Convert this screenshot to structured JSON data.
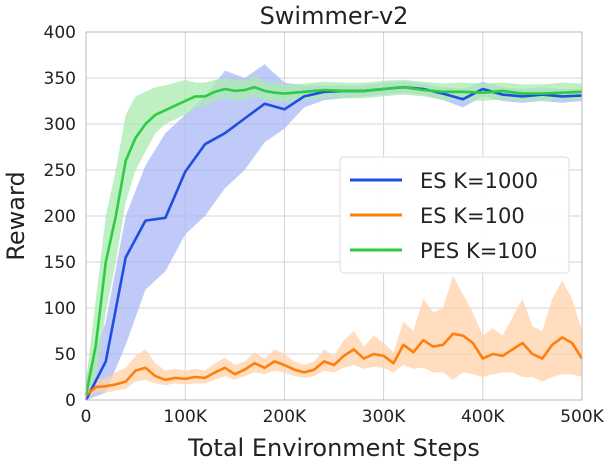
{
  "chart_data": {
    "type": "line",
    "title": "Swimmer-v2",
    "xlabel": "Total Environment Steps",
    "ylabel": "Reward",
    "xlim": [
      0,
      500000
    ],
    "ylim": [
      0,
      400
    ],
    "xticks": [
      0,
      100000,
      200000,
      300000,
      400000,
      500000
    ],
    "xtick_labels": [
      "0",
      "100K",
      "200K",
      "300K",
      "400K",
      "500K"
    ],
    "yticks": [
      0,
      50,
      100,
      150,
      200,
      250,
      300,
      350,
      400
    ],
    "ytick_labels": [
      "0",
      "50",
      "100",
      "150",
      "200",
      "250",
      "300",
      "350",
      "400"
    ],
    "grid": true,
    "legend_position": "center-right",
    "series": [
      {
        "name": "ES K=1000",
        "color": "#1f4fe0",
        "band_color": "#aab8f5",
        "x": [
          0,
          20000,
          40000,
          60000,
          80000,
          100000,
          120000,
          140000,
          160000,
          180000,
          200000,
          220000,
          240000,
          260000,
          280000,
          300000,
          320000,
          340000,
          360000,
          380000,
          400000,
          420000,
          440000,
          460000,
          480000,
          500000
        ],
        "y": [
          0,
          42,
          155,
          195,
          198,
          248,
          278,
          290,
          306,
          322,
          316,
          330,
          335,
          336,
          336,
          338,
          340,
          338,
          333,
          327,
          338,
          332,
          330,
          332,
          330,
          331
        ],
        "lower": [
          0,
          8,
          60,
          120,
          140,
          180,
          200,
          230,
          250,
          280,
          295,
          318,
          326,
          328,
          330,
          332,
          334,
          332,
          326,
          318,
          330,
          325,
          323,
          325,
          323,
          325
        ],
        "upper": [
          25,
          85,
          200,
          255,
          290,
          310,
          330,
          358,
          350,
          365,
          345,
          342,
          342,
          342,
          342,
          345,
          346,
          344,
          340,
          338,
          346,
          340,
          338,
          340,
          338,
          338
        ]
      },
      {
        "name": "ES K=100",
        "color": "#ff7f0e",
        "band_color": "#ffd2a8",
        "x": [
          0,
          10000,
          20000,
          30000,
          40000,
          50000,
          60000,
          70000,
          80000,
          90000,
          100000,
          110000,
          120000,
          130000,
          140000,
          150000,
          160000,
          170000,
          180000,
          190000,
          200000,
          210000,
          220000,
          230000,
          240000,
          250000,
          260000,
          270000,
          280000,
          290000,
          300000,
          310000,
          320000,
          330000,
          340000,
          350000,
          360000,
          370000,
          380000,
          390000,
          400000,
          410000,
          420000,
          430000,
          440000,
          450000,
          460000,
          470000,
          480000,
          490000,
          500000
        ],
        "y": [
          5,
          14,
          15,
          17,
          20,
          32,
          35,
          26,
          22,
          24,
          23,
          25,
          24,
          30,
          35,
          28,
          33,
          40,
          35,
          42,
          38,
          33,
          30,
          33,
          42,
          38,
          48,
          55,
          45,
          50,
          48,
          40,
          60,
          52,
          65,
          58,
          60,
          72,
          70,
          62,
          45,
          50,
          48,
          55,
          62,
          50,
          45,
          60,
          68,
          62,
          45
        ],
        "lower": [
          0,
          8,
          8,
          10,
          12,
          20,
          22,
          18,
          16,
          18,
          17,
          18,
          18,
          22,
          26,
          22,
          26,
          30,
          28,
          32,
          30,
          26,
          24,
          26,
          32,
          30,
          35,
          38,
          34,
          36,
          35,
          30,
          38,
          34,
          35,
          30,
          30,
          22,
          30,
          28,
          25,
          28,
          30,
          30,
          25,
          25,
          20,
          25,
          28,
          28,
          25
        ],
        "upper": [
          10,
          22,
          24,
          30,
          35,
          48,
          55,
          40,
          32,
          34,
          32,
          34,
          32,
          40,
          46,
          38,
          42,
          52,
          45,
          55,
          50,
          42,
          38,
          42,
          55,
          48,
          65,
          75,
          58,
          70,
          62,
          52,
          85,
          75,
          110,
          95,
          100,
          135,
          115,
          95,
          70,
          78,
          70,
          90,
          110,
          80,
          75,
          110,
          130,
          110,
          75
        ]
      },
      {
        "name": "PES K=100",
        "color": "#2ecc40",
        "band_color": "#a9ebb0",
        "x": [
          0,
          10000,
          20000,
          30000,
          40000,
          50000,
          60000,
          70000,
          80000,
          90000,
          100000,
          110000,
          120000,
          130000,
          140000,
          150000,
          160000,
          170000,
          180000,
          190000,
          200000,
          220000,
          240000,
          260000,
          280000,
          300000,
          320000,
          340000,
          360000,
          380000,
          400000,
          420000,
          440000,
          460000,
          480000,
          500000
        ],
        "y": [
          5,
          60,
          150,
          200,
          260,
          285,
          300,
          310,
          315,
          320,
          325,
          330,
          330,
          335,
          338,
          336,
          337,
          340,
          336,
          334,
          333,
          335,
          337,
          336,
          336,
          338,
          340,
          337,
          335,
          335,
          334,
          336,
          333,
          333,
          334,
          335
        ],
        "lower": [
          0,
          25,
          95,
          150,
          215,
          250,
          270,
          290,
          300,
          305,
          310,
          318,
          320,
          325,
          328,
          326,
          327,
          330,
          326,
          325,
          324,
          326,
          328,
          328,
          328,
          330,
          332,
          330,
          326,
          326,
          325,
          327,
          325,
          325,
          326,
          326
        ],
        "upper": [
          20,
          110,
          200,
          250,
          310,
          330,
          335,
          340,
          342,
          345,
          348,
          345,
          345,
          348,
          350,
          348,
          348,
          352,
          346,
          345,
          343,
          344,
          346,
          345,
          345,
          347,
          348,
          346,
          344,
          345,
          344,
          345,
          343,
          343,
          345,
          344
        ]
      }
    ]
  }
}
